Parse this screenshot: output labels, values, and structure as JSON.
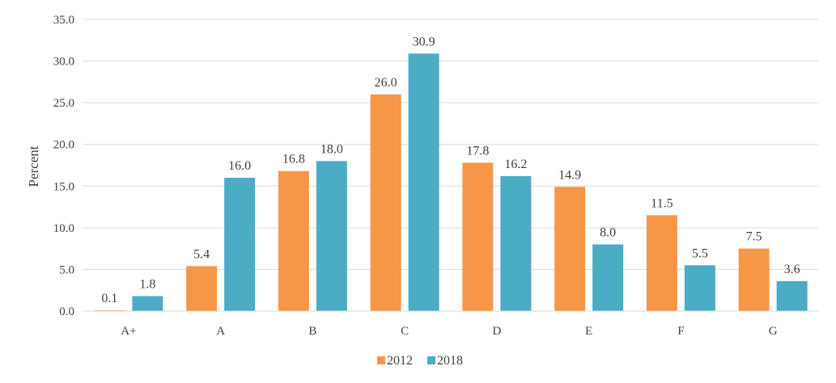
{
  "chart_data": {
    "type": "bar",
    "categories": [
      "A+",
      "A",
      "B",
      "C",
      "D",
      "E",
      "F",
      "G"
    ],
    "series": [
      {
        "name": "2012",
        "color": "#F79646",
        "values": [
          0.1,
          5.4,
          16.8,
          26.0,
          17.8,
          14.9,
          11.5,
          7.5
        ],
        "labels": [
          "0.1",
          "5.4",
          "16.8",
          "26.0",
          "17.8",
          "14.9",
          "11.5",
          "7.5"
        ]
      },
      {
        "name": "2018",
        "color": "#4BACC6",
        "values": [
          1.8,
          16.0,
          18.0,
          30.9,
          16.2,
          8.0,
          5.5,
          3.6
        ],
        "labels": [
          "1.8",
          "16.0",
          "18.0",
          "30.9",
          "16.2",
          "8.0",
          "5.5",
          "3.6"
        ]
      }
    ],
    "title": "",
    "xlabel": "",
    "ylabel": "Percent",
    "ylim": [
      0,
      35
    ],
    "yticks": [
      "0.0",
      "5.0",
      "10.0",
      "15.0",
      "20.0",
      "25.0",
      "30.0",
      "35.0"
    ],
    "grid": true,
    "legend": "bottom-center"
  }
}
